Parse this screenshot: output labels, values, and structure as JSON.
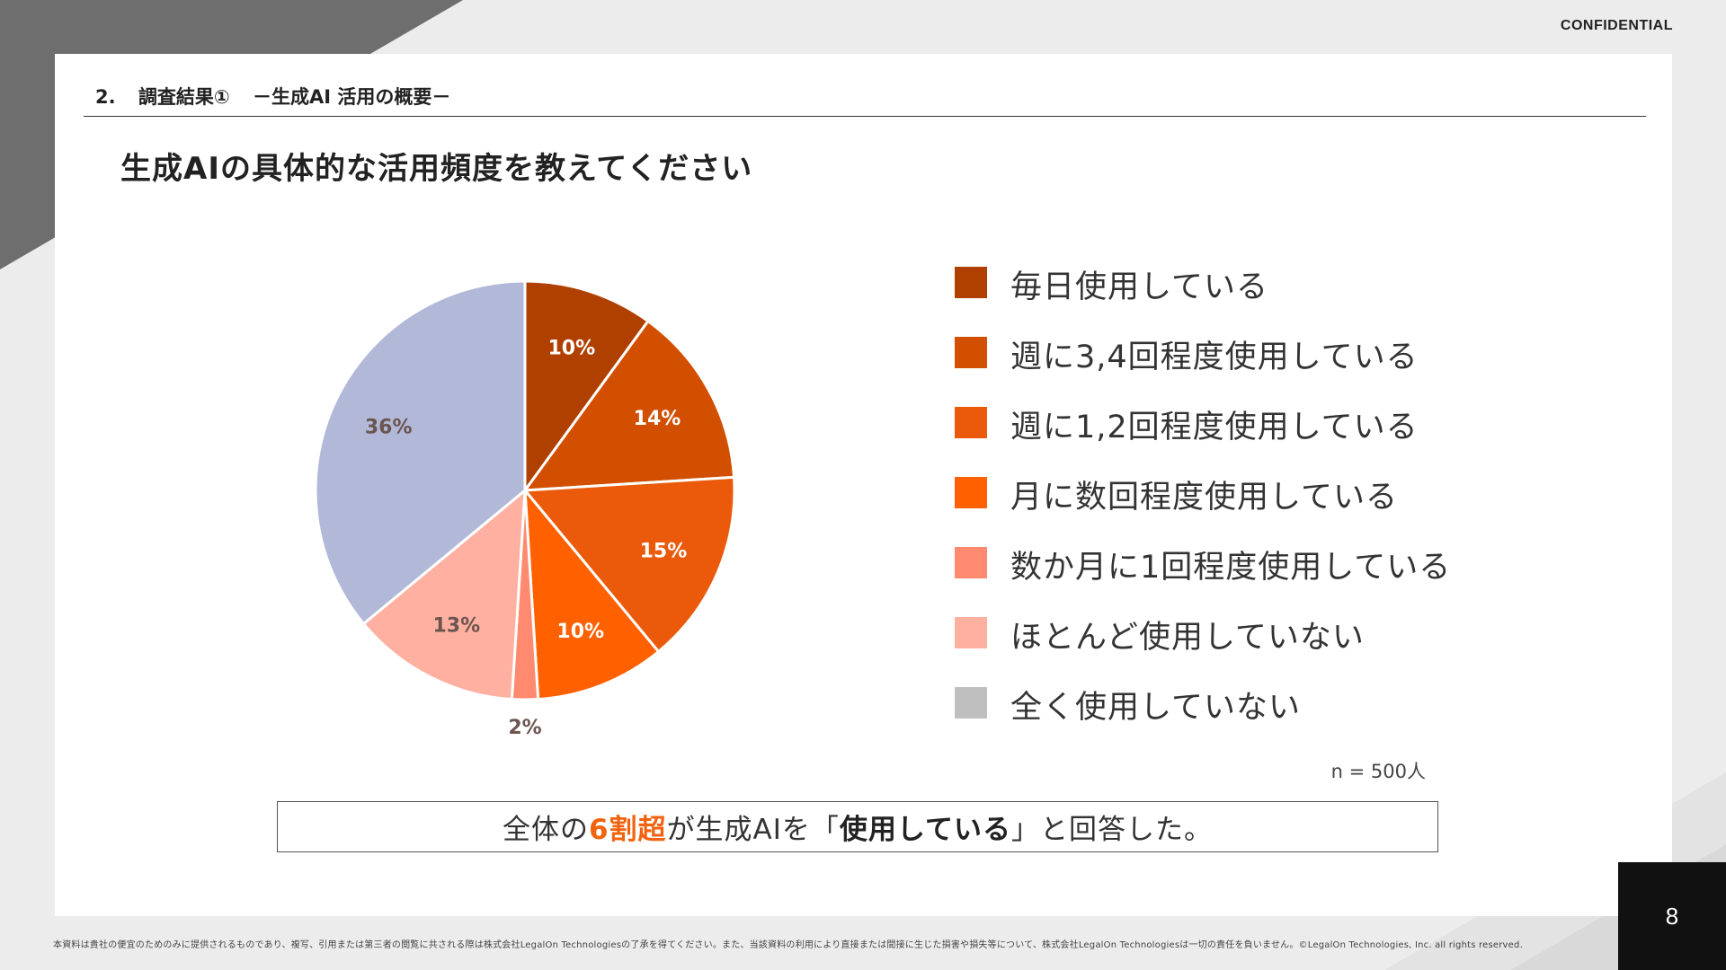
{
  "header": {
    "confidential": "CONFIDENTIAL",
    "section_number": "2.",
    "section_title": "調査結果①",
    "section_subtitle": "－生成AI 活用の概要－"
  },
  "slide": {
    "title": "生成AIの具体的な活用頻度を教えてください",
    "sample_note": "n = 500人",
    "conclusion": {
      "part1": "全体の",
      "accent": "6割超",
      "part2": "が生成AIを「",
      "strong": "使用している",
      "part3": "」と回答した。"
    },
    "page_number": "8",
    "footer": "本資料は貴社の便宜のためのみに提供されるものであり、複写、引用または第三者の閲覧に共される際は株式会社LegalOn Technologiesの了承を得てください。また、当該資料の利用により直接または間接に生じた損害や損失等について、株式会社LegalOn Technologiesは一切の責任を負いません。©LegalOn Technologies, Inc. all rights reserved."
  },
  "colors": {
    "accent": "#f2630f",
    "label_dark": "#6b5550",
    "label_light": "#ffffff"
  },
  "chart_data": {
    "type": "pie",
    "start": "top, clockwise",
    "slices": [
      {
        "name": "毎日使用している",
        "value": 10,
        "label": "10%",
        "color": "#b04000",
        "label_color": "#ffffff",
        "legend_color": "#b04000"
      },
      {
        "name": "週に3,4回程度使用している",
        "value": 14,
        "label": "14%",
        "color": "#d24f00",
        "label_color": "#ffffff",
        "legend_color": "#d24f00"
      },
      {
        "name": "週に1,2回程度使用している",
        "value": 15,
        "label": "15%",
        "color": "#ea5a0a",
        "label_color": "#ffffff",
        "legend_color": "#ea5a0a"
      },
      {
        "name": "月に数回程度使用している",
        "value": 10,
        "label": "10%",
        "color": "#ff6000",
        "label_color": "#ffffff",
        "legend_color": "#ff6000"
      },
      {
        "name": "数か月に1回程度使用している",
        "value": 2,
        "label": "2%",
        "color": "#ff8a70",
        "label_color": "#6b5550",
        "legend_color": "#ff8a70"
      },
      {
        "name": "ほとんど使用していない",
        "value": 13,
        "label": "13%",
        "color": "#ffb0a0",
        "label_color": "#6b5550",
        "legend_color": "#ffb0a0"
      },
      {
        "name": "全く使用していない",
        "value": 36,
        "label": "36%",
        "color": "#b1b8d8",
        "label_color": "#6b5550",
        "legend_color": "#bfbfbf"
      }
    ]
  }
}
